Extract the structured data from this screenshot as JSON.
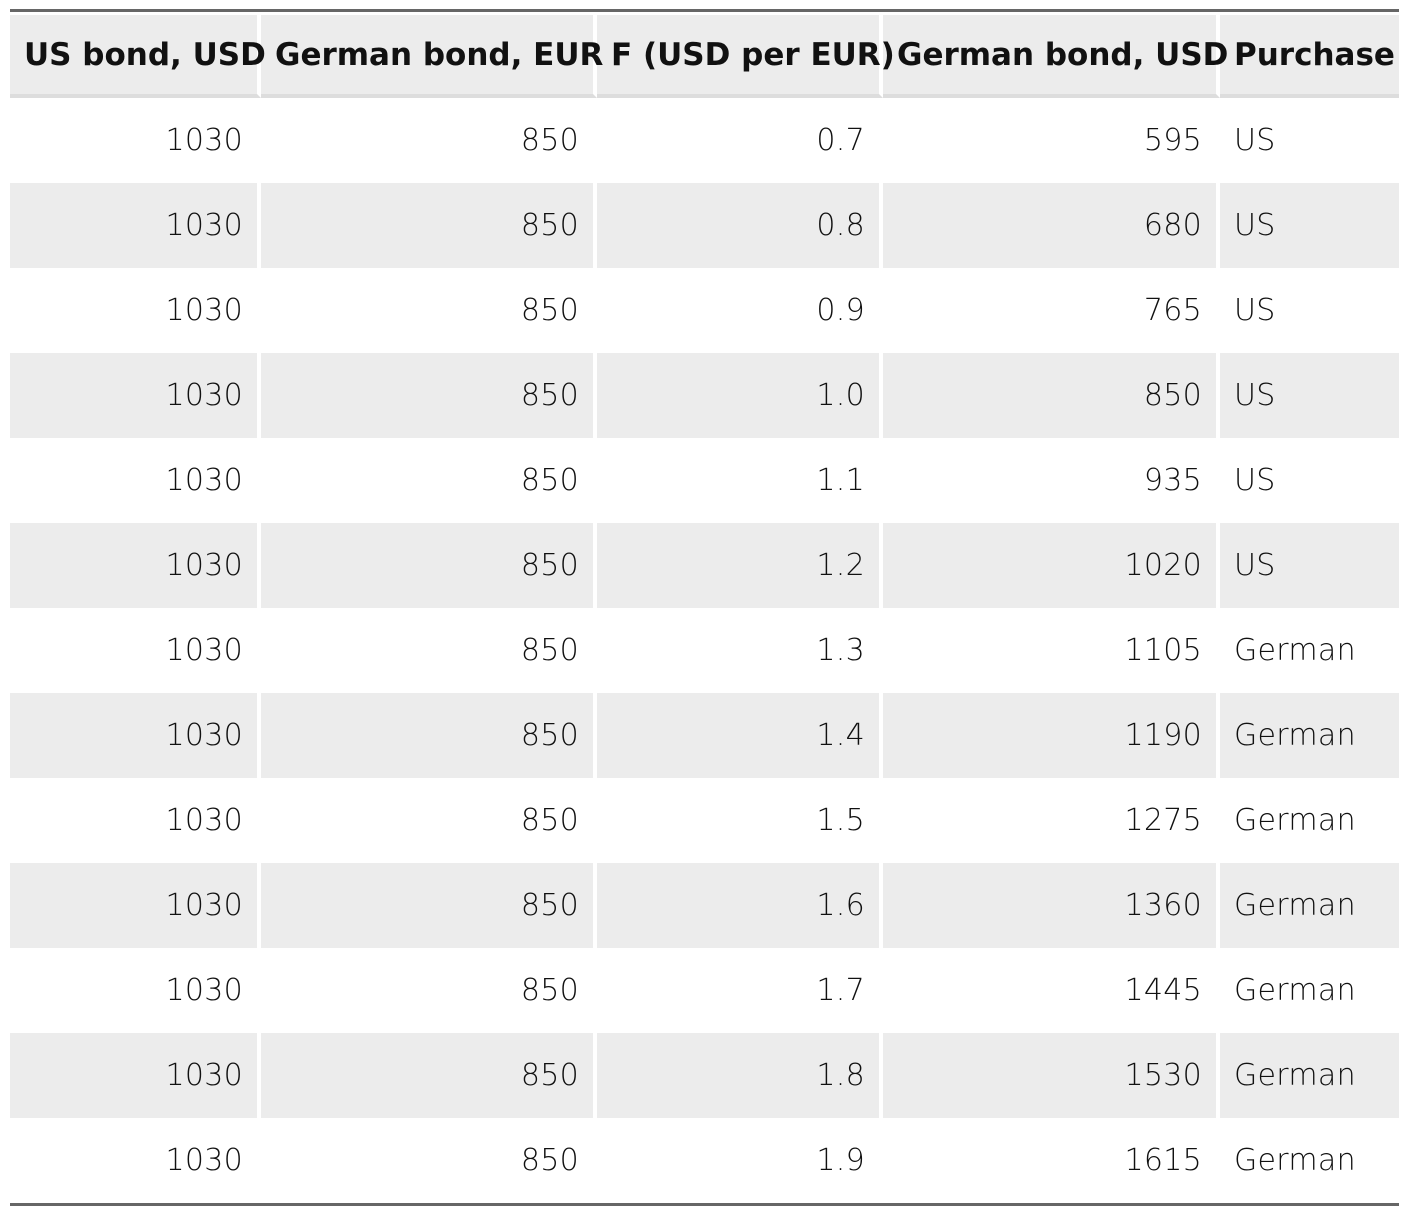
{
  "table": {
    "headers": [
      "US bond, USD",
      "German bond, EUR",
      "F (USD per EUR)",
      "German bond, USD",
      "Purchase"
    ],
    "rows": [
      [
        "1030",
        "850",
        "0.7",
        "595",
        "US"
      ],
      [
        "1030",
        "850",
        "0.8",
        "680",
        "US"
      ],
      [
        "1030",
        "850",
        "0.9",
        "765",
        "US"
      ],
      [
        "1030",
        "850",
        "1.0",
        "850",
        "US"
      ],
      [
        "1030",
        "850",
        "1.1",
        "935",
        "US"
      ],
      [
        "1030",
        "850",
        "1.2",
        "1020",
        "US"
      ],
      [
        "1030",
        "850",
        "1.3",
        "1105",
        "German"
      ],
      [
        "1030",
        "850",
        "1.4",
        "1190",
        "German"
      ],
      [
        "1030",
        "850",
        "1.5",
        "1275",
        "German"
      ],
      [
        "1030",
        "850",
        "1.6",
        "1360",
        "German"
      ],
      [
        "1030",
        "850",
        "1.7",
        "1445",
        "German"
      ],
      [
        "1030",
        "850",
        "1.8",
        "1530",
        "German"
      ],
      [
        "1030",
        "850",
        "1.9",
        "1615",
        "German"
      ]
    ]
  },
  "colors": {
    "stripe": "#ececec",
    "rule": "#666666"
  }
}
